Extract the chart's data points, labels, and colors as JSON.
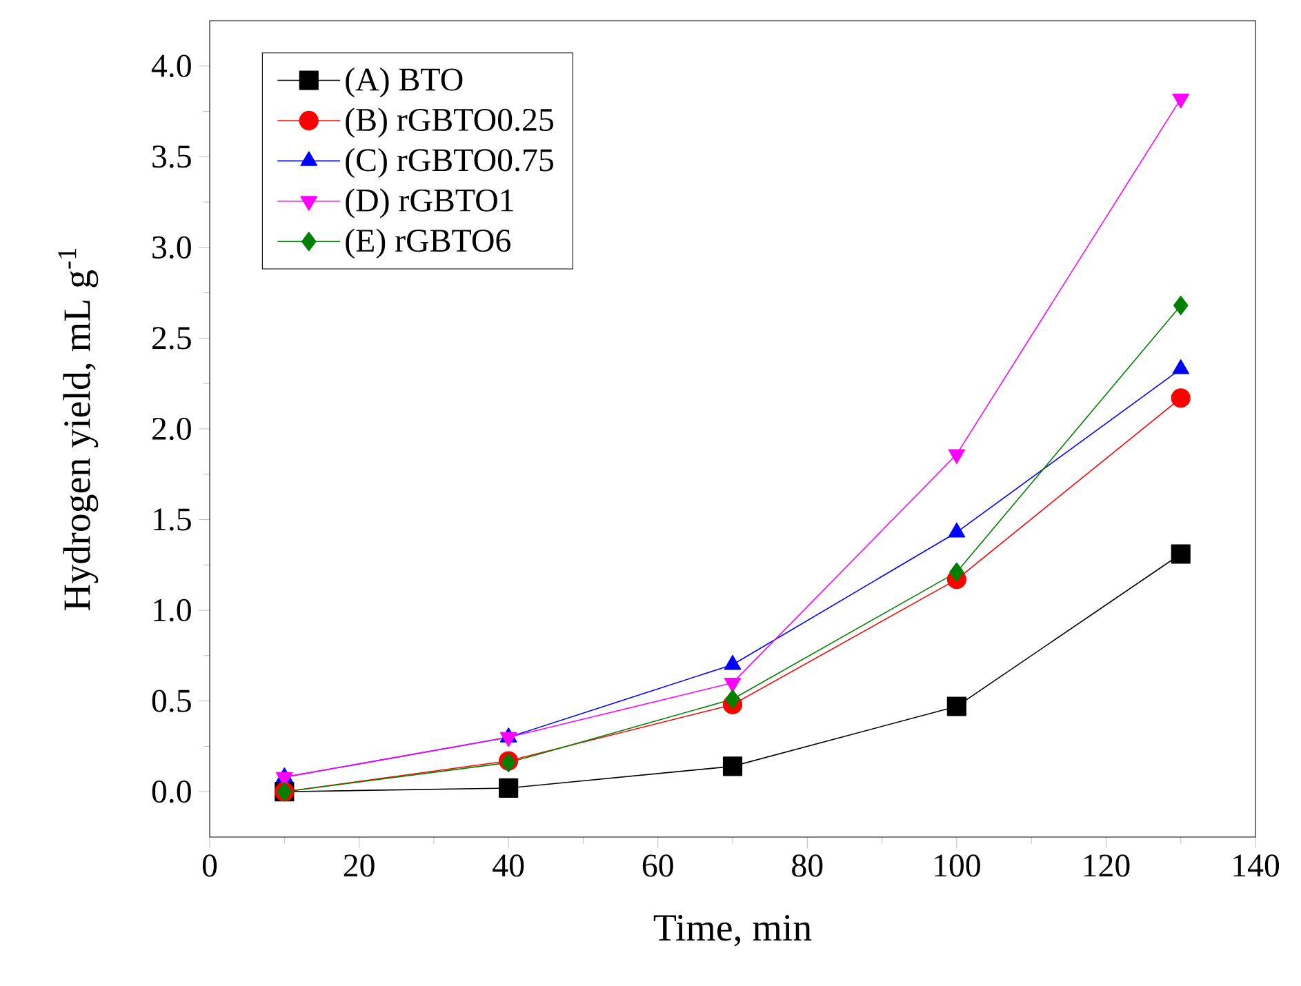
{
  "chart_data": {
    "type": "line",
    "xlabel": "Time, min",
    "ylabel": "Hydrogen yield, mL g$^{-1}$",
    "x": [
      10,
      40,
      70,
      100,
      130
    ],
    "xlim": [
      0,
      140
    ],
    "xticks": [
      0,
      20,
      40,
      60,
      80,
      100,
      120,
      140
    ],
    "ylim": [
      -0.25,
      4.25
    ],
    "yticks": [
      {
        "value": 0,
        "label": "0.0"
      },
      {
        "value": 0.5,
        "label": "0.5"
      },
      {
        "value": 1,
        "label": "1.0"
      },
      {
        "value": 1.5,
        "label": "1.5"
      },
      {
        "value": 2,
        "label": "2.0"
      },
      {
        "value": 2.5,
        "label": "2.5"
      },
      {
        "value": 3,
        "label": "3.0"
      },
      {
        "value": 3.5,
        "label": "3.5"
      },
      {
        "value": 4,
        "label": "4.0"
      }
    ],
    "legend": "top left",
    "grid": false,
    "line_style": "solid",
    "series": [
      {
        "name": "(A) BTO",
        "color": "#000000",
        "marker": "square",
        "values": [
          0.0,
          0.02,
          0.14,
          0.47,
          1.31
        ]
      },
      {
        "name": "(B) rGBTO0.25",
        "color": "#ff0000",
        "marker": "circle",
        "values": [
          0.0,
          0.17,
          0.48,
          1.17,
          2.17
        ]
      },
      {
        "name": "(C) rGBTO0.75",
        "color": "#0000ff",
        "marker": "triangle",
        "values": [
          0.08,
          0.3,
          0.7,
          1.43,
          2.33
        ]
      },
      {
        "name": "(D) rGBTO1",
        "color": "#ff00ff",
        "marker": "triangle down",
        "values": [
          0.08,
          0.3,
          0.6,
          1.86,
          3.82
        ]
      },
      {
        "name": "(E) rGBTO6",
        "color": "#008000",
        "marker": "diamond",
        "values": [
          0.0,
          0.16,
          0.51,
          1.21,
          2.68
        ]
      }
    ]
  }
}
